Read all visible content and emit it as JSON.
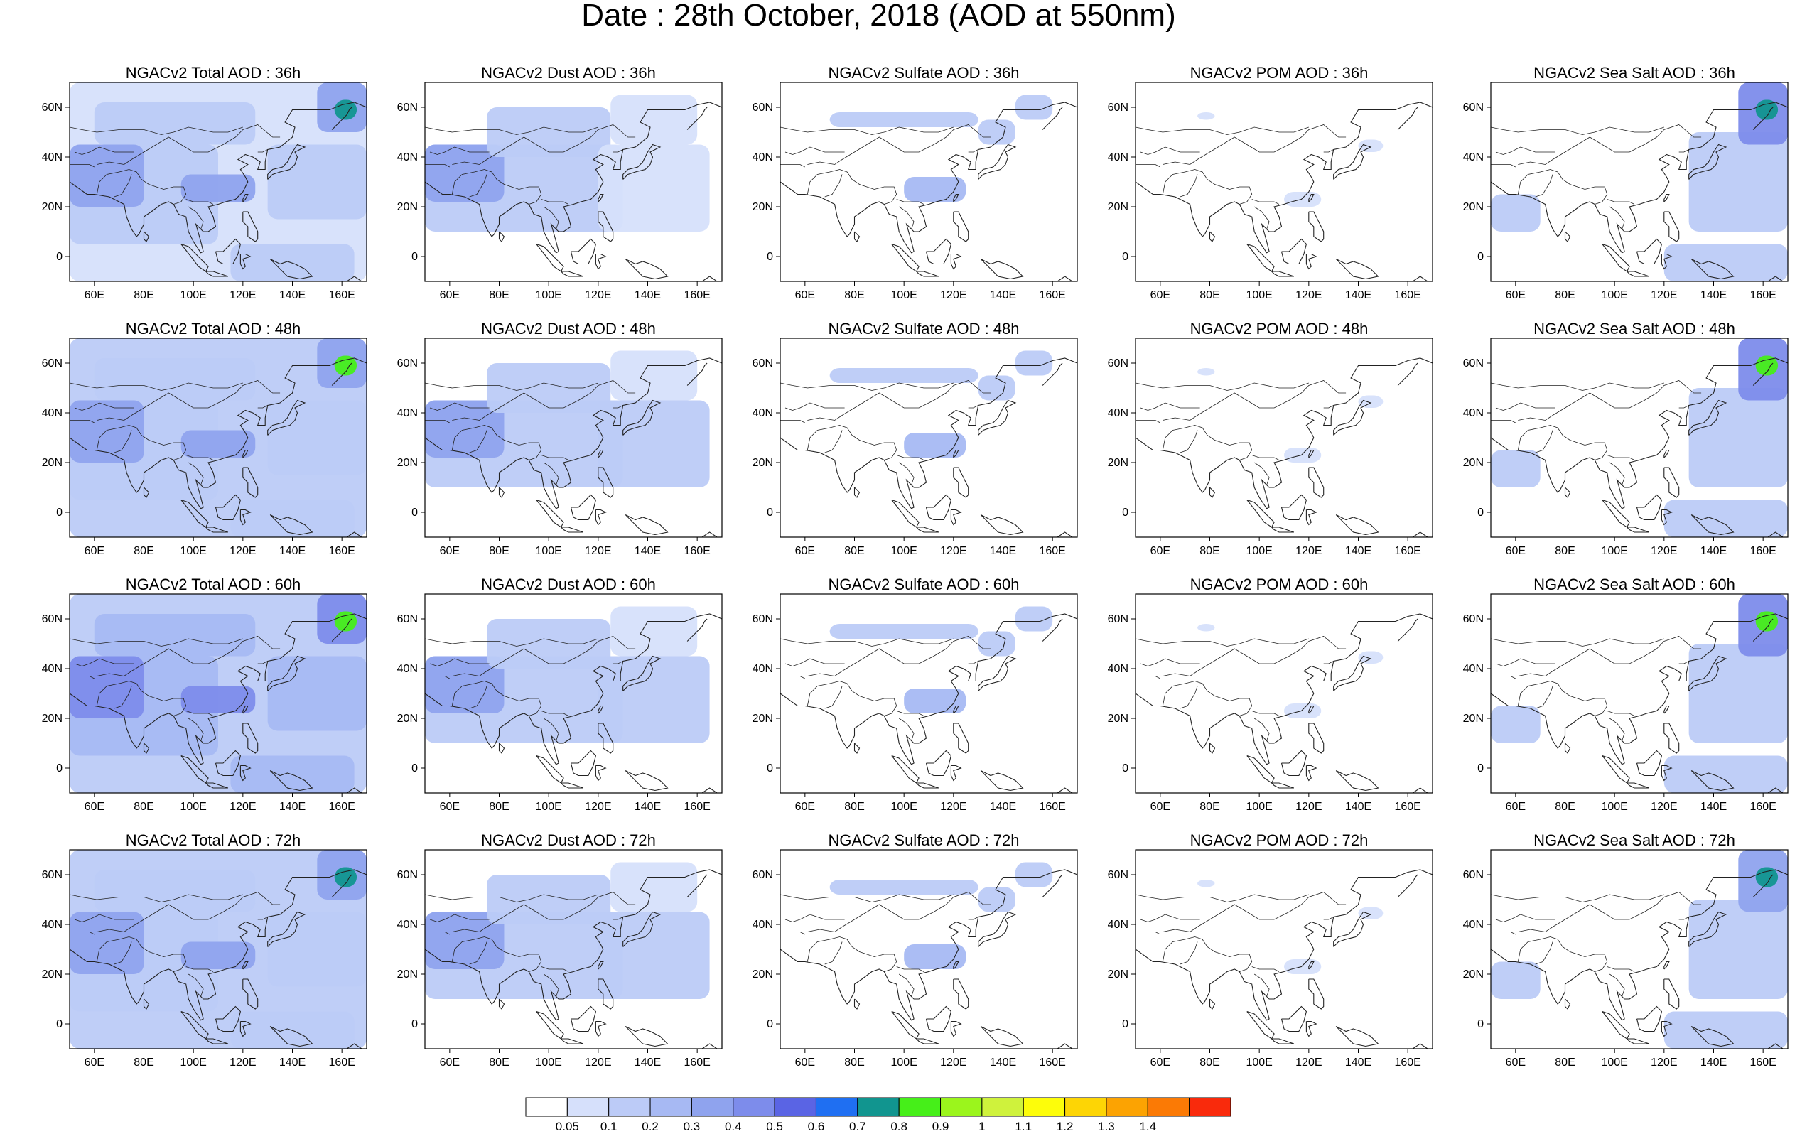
{
  "title": "Date : 28th October, 2018 (AOD at 550nm)",
  "grid": {
    "columns": [
      "total",
      "dust",
      "sulfate",
      "pom",
      "seasalt"
    ],
    "rows": [
      "36h",
      "48h",
      "60h",
      "72h"
    ]
  },
  "panel_titles": [
    [
      "NGACv2 Total AOD : 36h",
      "NGACv2 Dust AOD : 36h",
      "NGACv2 Sulfate AOD : 36h",
      "NGACv2 POM AOD : 36h",
      "NGACv2 Sea Salt AOD : 36h"
    ],
    [
      "NGACv2 Total AOD : 48h",
      "NGACv2 Dust AOD : 48h",
      "NGACv2 Sulfate AOD : 48h",
      "NGACv2 POM AOD : 48h",
      "NGACv2 Sea Salt AOD : 48h"
    ],
    [
      "NGACv2 Total AOD : 60h",
      "NGACv2 Dust AOD : 60h",
      "NGACv2 Sulfate AOD : 60h",
      "NGACv2 POM AOD : 60h",
      "NGACv2 Sea Salt AOD : 60h"
    ],
    [
      "NGACv2 Total AOD : 72h",
      "NGACv2 Dust AOD : 72h",
      "NGACv2 Sulfate AOD : 72h",
      "NGACv2 POM AOD : 72h",
      "NGACv2 Sea Salt  AOD : 72h"
    ]
  ],
  "map_extent": {
    "lon_range": [
      50,
      170
    ],
    "lat_range": [
      -10,
      70
    ]
  },
  "x_ticks": [
    "60E",
    "80E",
    "100E",
    "120E",
    "140E",
    "160E"
  ],
  "x_tick_values": [
    60,
    80,
    100,
    120,
    140,
    160
  ],
  "y_ticks": [
    "60N",
    "40N",
    "20N",
    "0"
  ],
  "y_tick_values": [
    60,
    40,
    20,
    0
  ],
  "colorbar": {
    "levels": [
      "0.05",
      "0.1",
      "0.2",
      "0.3",
      "0.4",
      "0.5",
      "0.6",
      "0.7",
      "0.8",
      "0.9",
      "1",
      "1.1",
      "1.2",
      "1.3",
      "1.4"
    ],
    "colors": [
      "#ffffff",
      "#d6e0fb",
      "#bccbf7",
      "#a7b9f3",
      "#8fa3ee",
      "#7d8ceb",
      "#5a64e4",
      "#1f6ff2",
      "#11958f",
      "#46ef19",
      "#9bf51c",
      "#cff23c",
      "#fdfd0a",
      "#fdd505",
      "#fca302",
      "#fb7a05",
      "#f92a0c"
    ]
  },
  "aod_levels": {
    "total": [
      {
        "lo": 0.16,
        "cores": 0.38,
        "hot": 0.75
      },
      {
        "lo": 0.18,
        "cores": 0.38,
        "hot": 0.8
      },
      {
        "lo": 0.2,
        "cores": 0.4,
        "hot": 0.85
      },
      {
        "lo": 0.18,
        "cores": 0.38,
        "hot": 0.7
      }
    ],
    "dust": [
      {
        "lo": 0.12,
        "cores": 0.3
      },
      {
        "lo": 0.13,
        "cores": 0.3
      },
      {
        "lo": 0.14,
        "cores": 0.32
      },
      {
        "lo": 0.13,
        "cores": 0.3
      }
    ],
    "sulfate": [
      {
        "lo": 0.1,
        "cores": 0.22
      },
      {
        "lo": 0.1,
        "cores": 0.22
      },
      {
        "lo": 0.1,
        "cores": 0.2
      },
      {
        "lo": 0.1,
        "cores": 0.2
      }
    ],
    "pom": [
      {
        "lo": 0.08
      },
      {
        "lo": 0.08
      },
      {
        "lo": 0.08
      },
      {
        "lo": 0.08
      }
    ],
    "seasalt": [
      {
        "lo": 0.13,
        "cores": 0.4,
        "hot": 0.7
      },
      {
        "lo": 0.14,
        "cores": 0.42,
        "hot": 0.8
      },
      {
        "lo": 0.15,
        "cores": 0.45,
        "hot": 0.85
      },
      {
        "lo": 0.13,
        "cores": 0.38,
        "hot": 0.75
      }
    ]
  }
}
